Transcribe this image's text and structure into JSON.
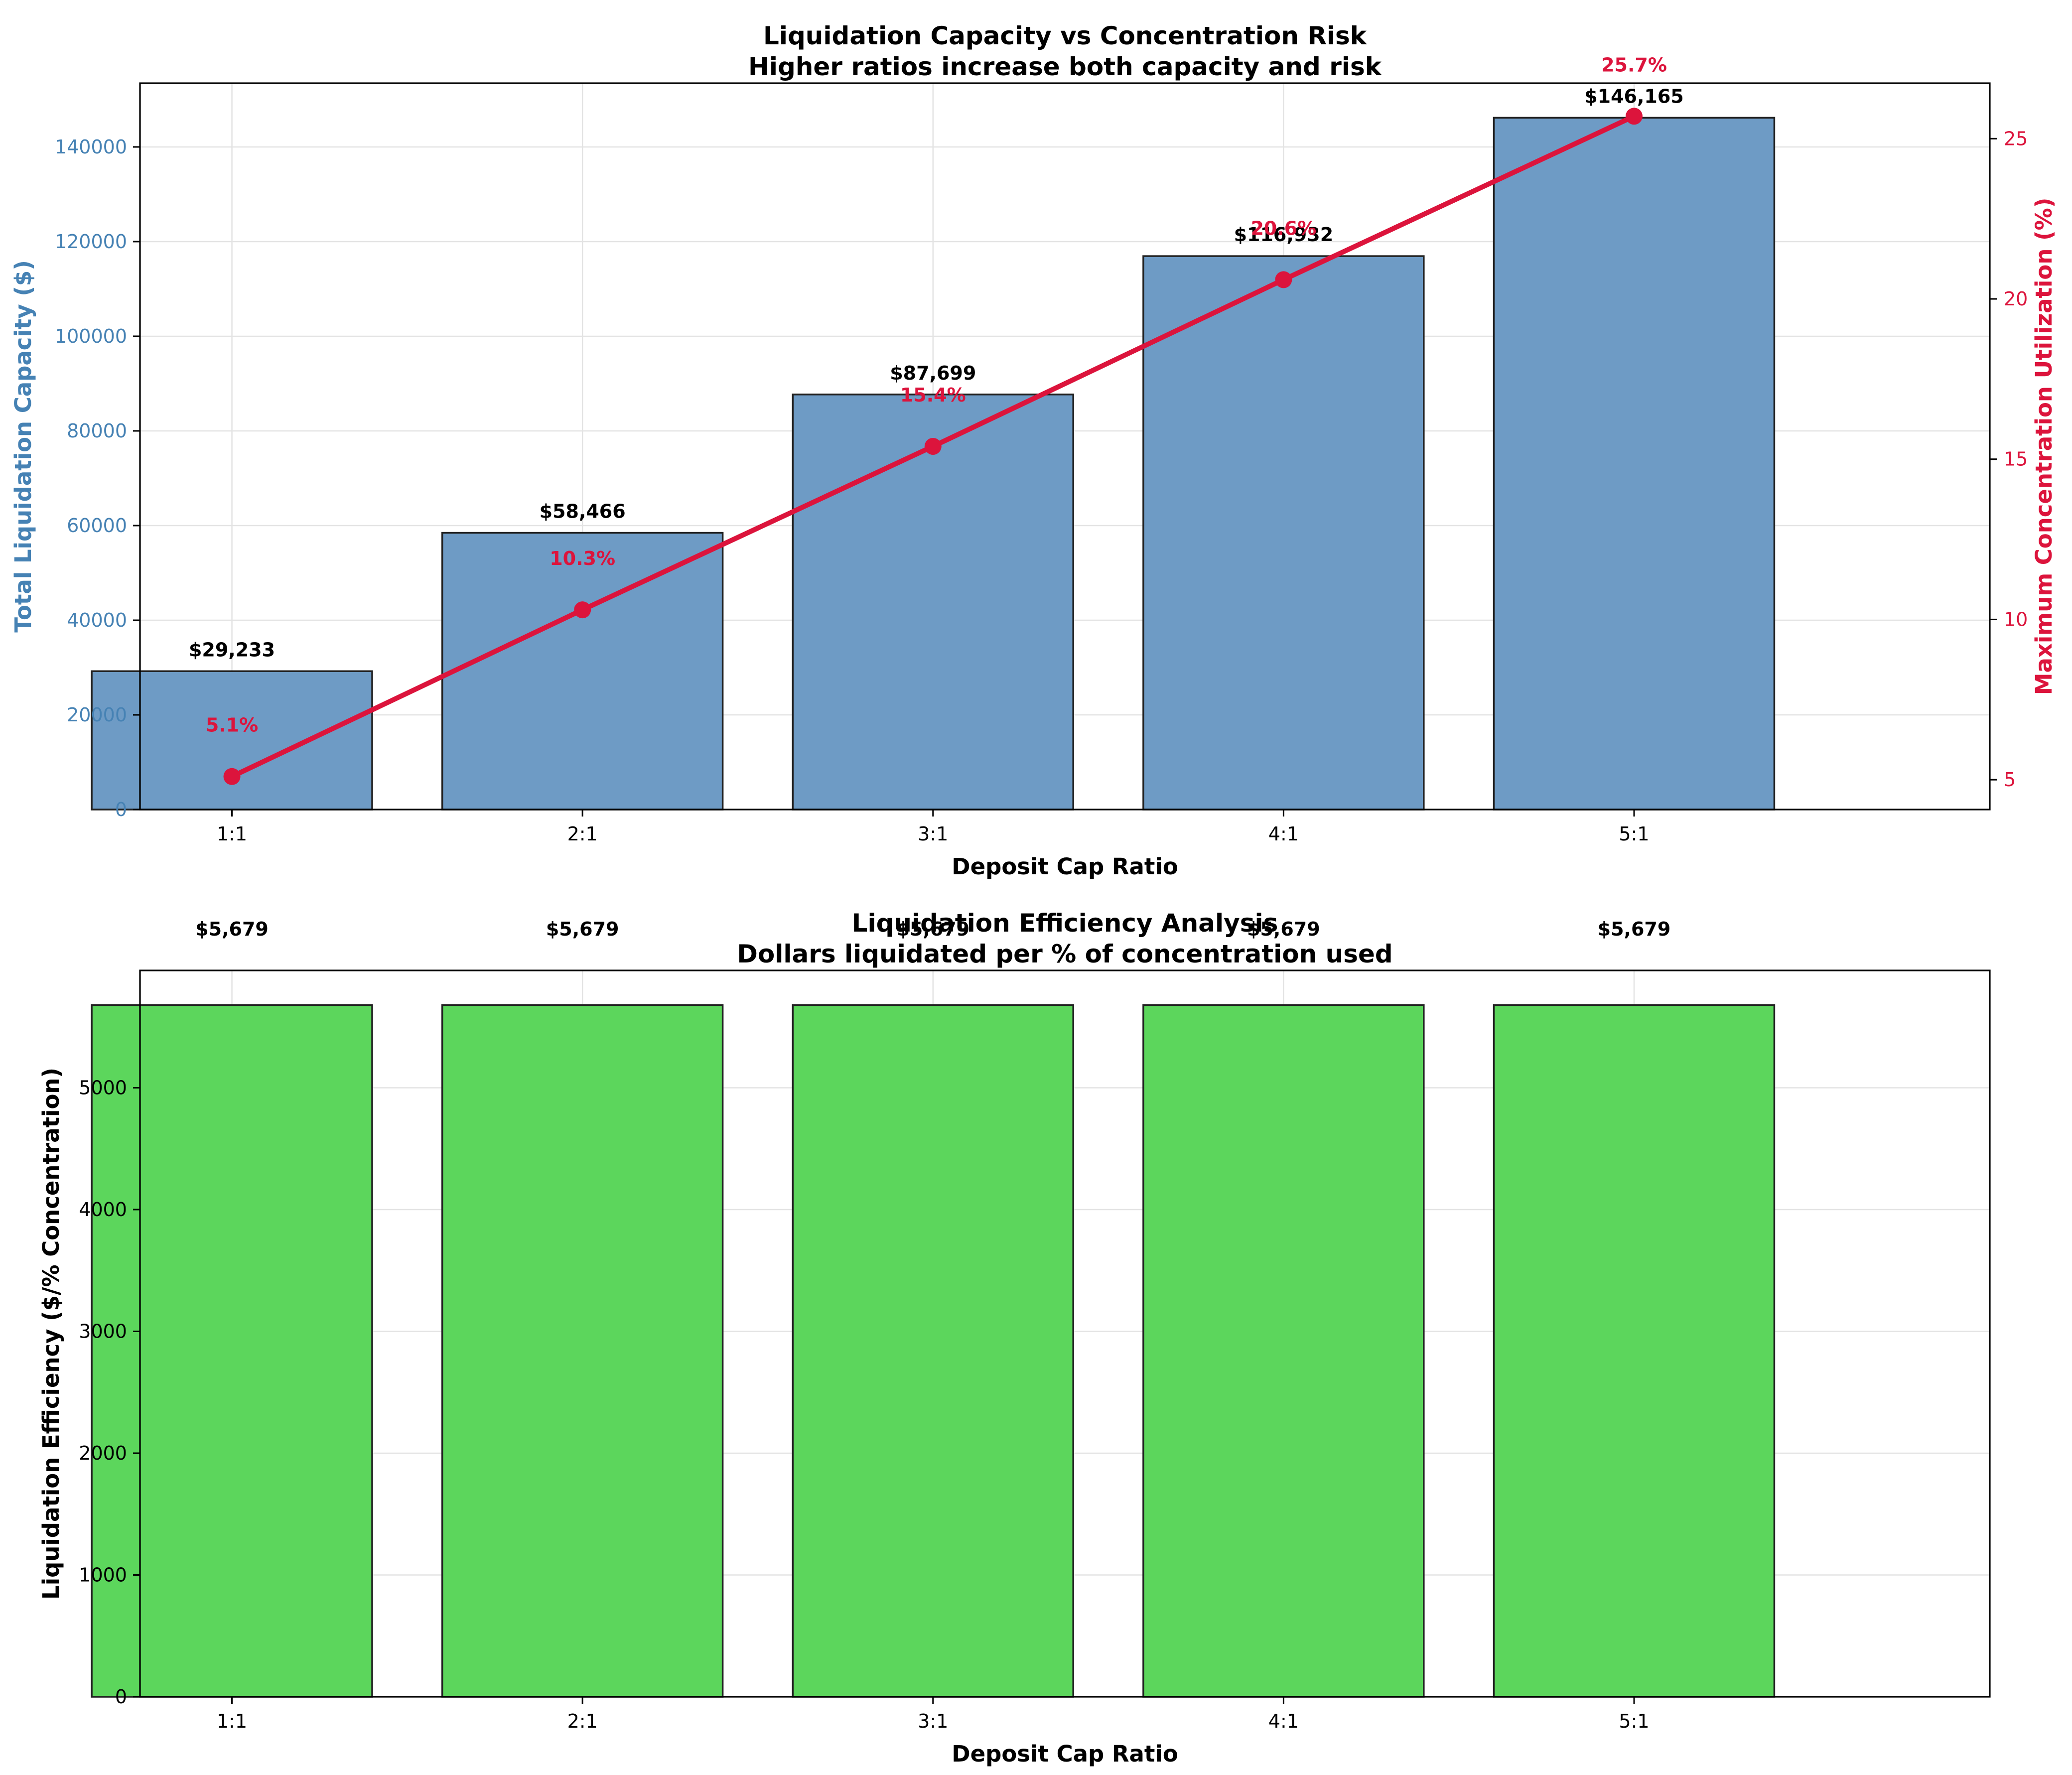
{
  "chart_data": [
    {
      "type": "bar",
      "secondary_type": "line",
      "title": "Liquidation Capacity vs Concentration Risk",
      "subtitle": "Higher ratios increase both capacity and risk",
      "xlabel": "Deposit Cap Ratio",
      "ylabel": "Total Liquidation Capacity ($)",
      "y2label": "Maximum Concentration Utilization (%)",
      "categories": [
        "1:1",
        "2:1",
        "3:1",
        "4:1",
        "5:1"
      ],
      "series": [
        {
          "values": [
            29233,
            58466,
            87699,
            116932,
            146165
          ],
          "labels": [
            "$29,233",
            "$58,466",
            "$87,699",
            "$116,932",
            "$146,165"
          ],
          "axis": "left"
        },
        {
          "values": [
            5.1,
            10.3,
            15.4,
            20.6,
            25.7
          ],
          "labels": [
            "5.1%",
            "10.3%",
            "15.4%",
            "20.6%",
            "25.7%"
          ],
          "axis": "right"
        }
      ],
      "ylim": [
        0,
        153468
      ],
      "y2lim": [
        4.07,
        26.73
      ],
      "yticks": [
        0,
        20000,
        40000,
        60000,
        80000,
        100000,
        120000,
        140000
      ],
      "y2ticks": [
        5,
        10,
        15,
        20,
        25
      ],
      "grid": true,
      "colors": {
        "bar": "#6e9bc5",
        "bar_edge": "#222222",
        "line": "#dc143c",
        "left_axis": "#4682b4",
        "right_axis": "#dc143c"
      }
    },
    {
      "type": "bar",
      "title": "Liquidation Efficiency Analysis",
      "subtitle": "Dollars liquidated per % of concentration used",
      "xlabel": "Deposit Cap Ratio",
      "ylabel": "Liquidation Efficiency ($/% Concentration)",
      "categories": [
        "1:1",
        "2:1",
        "3:1",
        "4:1",
        "5:1"
      ],
      "values": [
        5679,
        5679,
        5679,
        5679,
        5679
      ],
      "labels": [
        "$5,679",
        "$5,679",
        "$5,679",
        "$5,679",
        "$5,679"
      ],
      "ylim": [
        0,
        5963
      ],
      "yticks": [
        0,
        1000,
        2000,
        3000,
        4000,
        5000
      ],
      "grid": true,
      "colors": {
        "bar": "#5cd65c",
        "bar_edge": "#222222"
      }
    }
  ]
}
